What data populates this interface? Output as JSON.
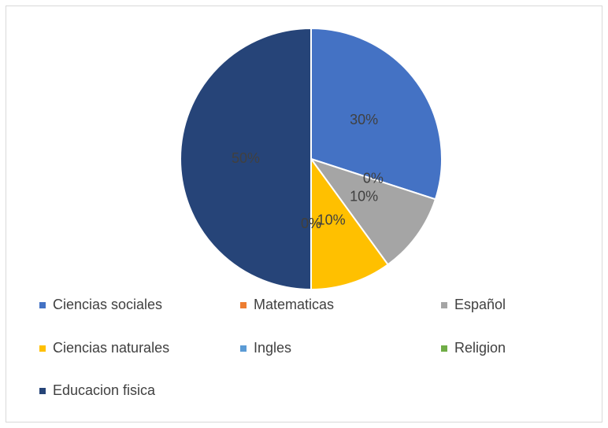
{
  "chart_data": {
    "type": "pie",
    "categories": [
      "Ciencias sociales",
      "Matematicas",
      "Español",
      "Ciencias naturales",
      "Ingles",
      "Religion",
      "Educacion fisica"
    ],
    "values": [
      30,
      0,
      10,
      10,
      0,
      0,
      50
    ],
    "value_labels": [
      "30%",
      "0%",
      "10%",
      "10%",
      "0%",
      "0%",
      "50%"
    ],
    "colors": [
      "#4472c4",
      "#ed7d31",
      "#a5a5a5",
      "#ffc000",
      "#5b9bd5",
      "#70ad47",
      "#264478"
    ],
    "legend": "bottom"
  }
}
